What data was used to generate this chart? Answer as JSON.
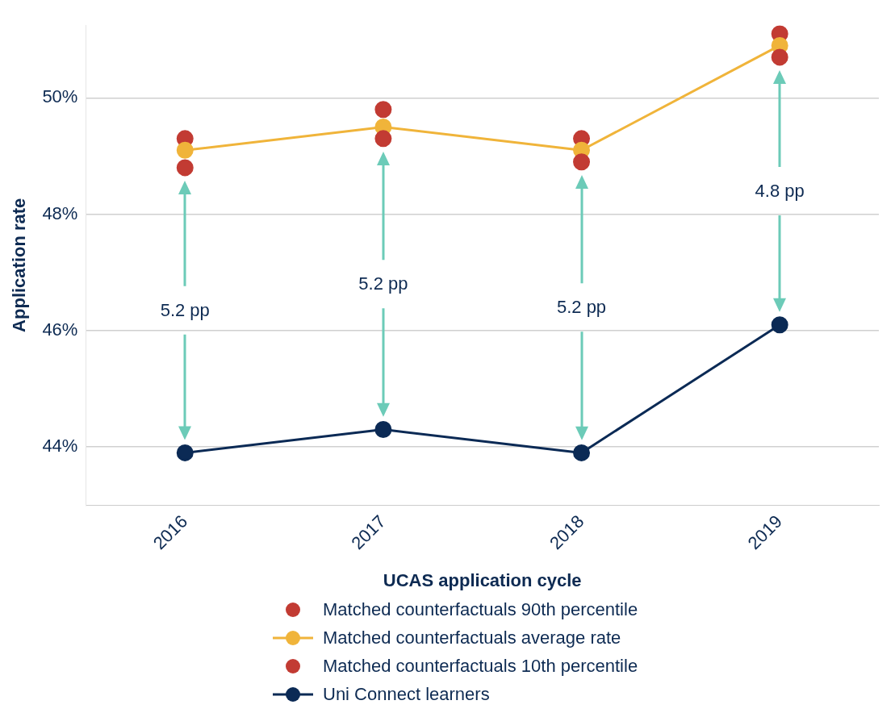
{
  "chart_data": {
    "type": "line",
    "xlabel": "UCAS application cycle",
    "ylabel": "Application rate",
    "categories": [
      "2016",
      "2017",
      "2018",
      "2019"
    ],
    "series": [
      {
        "name": "Matched counterfactuals 90th percentile",
        "type": "scatter",
        "color": "#c23b33",
        "marker": "circle",
        "values": [
          49.3,
          49.8,
          49.3,
          51.1
        ]
      },
      {
        "name": "Matched counterfactuals average rate",
        "type": "line",
        "color": "#f0b43a",
        "marker": "circle",
        "values": [
          49.1,
          49.5,
          49.1,
          50.9
        ]
      },
      {
        "name": "Matched counterfactuals 10th percentile",
        "type": "scatter",
        "color": "#c23b33",
        "marker": "circle",
        "values": [
          48.8,
          49.3,
          48.9,
          50.7
        ]
      },
      {
        "name": "Uni Connect learners",
        "type": "line",
        "color": "#0b2a55",
        "marker": "circle",
        "values": [
          43.9,
          44.3,
          43.9,
          46.1
        ]
      }
    ],
    "ylim": [
      43,
      51.25
    ],
    "yticks": [
      {
        "value": 44,
        "label": "44%"
      },
      {
        "value": 46,
        "label": "46%"
      },
      {
        "value": 48,
        "label": "48%"
      },
      {
        "value": 50,
        "label": "50%"
      }
    ],
    "grid": "y",
    "legend": "bottom",
    "annotations": [
      "5.2 pp",
      "5.2 pp",
      "5.2 pp",
      "4.8 pp"
    ]
  }
}
